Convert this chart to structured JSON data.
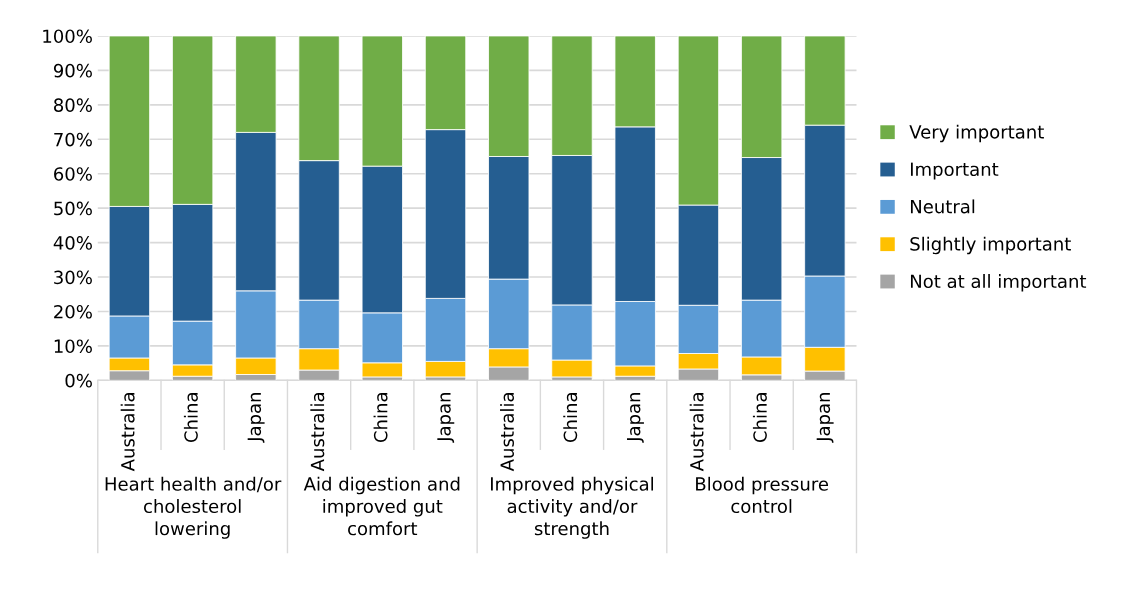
{
  "chart_data": {
    "type": "bar",
    "stacked": true,
    "categories": [
      "Australia",
      "China",
      "Japan",
      "Australia",
      "China",
      "Japan",
      "Australia",
      "China",
      "Japan",
      "Australia",
      "China",
      "Japan"
    ],
    "annotations": [
      "Heart health and/or cholesterol lowering",
      "Aid digestion and improved gut comfort",
      "Improved physical activity and/or strength",
      "Blood pressure control"
    ],
    "series": [
      {
        "name": "Not at all important",
        "color": "#a5a5a5",
        "values": [
          2.8,
          1.2,
          1.7,
          3.0,
          1.0,
          1.0,
          3.9,
          1.0,
          1.2,
          3.3,
          1.6,
          2.7
        ]
      },
      {
        "name": "Slightly important",
        "color": "#ffc000",
        "values": [
          3.7,
          3.3,
          4.8,
          6.2,
          4.1,
          4.5,
          5.3,
          4.9,
          3.0,
          4.5,
          5.2,
          6.9
        ]
      },
      {
        "name": "Neutral",
        "color": "#5b9bd5",
        "values": [
          12.2,
          12.7,
          19.5,
          14.1,
          14.5,
          18.3,
          20.2,
          16.0,
          18.7,
          14.0,
          16.5,
          20.7
        ]
      },
      {
        "name": "Important",
        "color": "#255e91",
        "values": [
          31.8,
          33.9,
          46.0,
          40.5,
          42.6,
          49.0,
          35.6,
          43.4,
          50.7,
          29.1,
          41.4,
          43.8
        ]
      },
      {
        "name": "Very important",
        "color": "#70ad47",
        "values": [
          49.5,
          48.9,
          28.0,
          36.2,
          37.8,
          27.2,
          35.0,
          34.7,
          26.4,
          49.1,
          35.3,
          25.9
        ]
      }
    ],
    "ylim": [
      0,
      100
    ],
    "yticks": [
      {
        "value": 0,
        "label": "0%"
      },
      {
        "value": 10,
        "label": "10%"
      },
      {
        "value": 20,
        "label": "20%"
      },
      {
        "value": 30,
        "label": "30%"
      },
      {
        "value": 40,
        "label": "40%"
      },
      {
        "value": 50,
        "label": "50%"
      },
      {
        "value": 60,
        "label": "60%"
      },
      {
        "value": 70,
        "label": "70%"
      },
      {
        "value": 80,
        "label": "80%"
      },
      {
        "value": 90,
        "label": "90%"
      },
      {
        "value": 100,
        "label": "100%"
      }
    ],
    "grid": "y",
    "legend": "right"
  }
}
